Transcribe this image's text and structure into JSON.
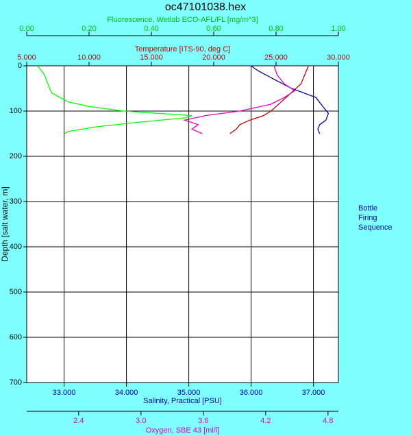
{
  "chart_data": {
    "type": "profile",
    "title": "oc47101038.hex",
    "y_label": "Depth [salt water, m]",
    "ylim": [
      0,
      700
    ],
    "yticks": [
      0,
      100,
      200,
      300,
      400,
      500,
      600,
      700
    ],
    "grid": true,
    "x_axes": [
      {
        "label": "Fluorescence, Wetlab ECO-AFL/FL [mg/m^3]",
        "color": "#00c000",
        "xlim": [
          0,
          1
        ],
        "xticks": [
          {
            "value": 0,
            "label": "0.00"
          },
          {
            "value": 0.2,
            "label": "0.20"
          },
          {
            "value": 0.4,
            "label": "0.40"
          },
          {
            "value": 0.6,
            "label": "0.60"
          },
          {
            "value": 0.8,
            "label": "0.80"
          },
          {
            "value": 1,
            "label": "1.00"
          }
        ]
      },
      {
        "label": "Temperature [ITS-90, deg C]",
        "color": "#c00000",
        "xlim": [
          5,
          30
        ],
        "xticks": [
          {
            "value": 5,
            "label": "5.000"
          },
          {
            "value": 10,
            "label": "10.000"
          },
          {
            "value": 15,
            "label": "15.000"
          },
          {
            "value": 20,
            "label": "20.000"
          },
          {
            "value": 25,
            "label": "25.000"
          },
          {
            "value": 30,
            "label": "30.000"
          }
        ]
      },
      {
        "label": "Salinity, Practical [PSU]",
        "color": "#0000a0",
        "xlim": [
          32.4,
          37.4
        ],
        "xticks": [
          {
            "value": 33,
            "label": "33.000"
          },
          {
            "value": 34,
            "label": "34.000"
          },
          {
            "value": 35,
            "label": "35.000"
          },
          {
            "value": 36,
            "label": "36.000"
          },
          {
            "value": 37,
            "label": "37.000"
          }
        ]
      },
      {
        "label": "Oxygen, SBE 43 [ml/l]",
        "color": "#e000c0",
        "xlim": [
          1.9,
          4.9
        ],
        "xticks": [
          2.4,
          {
            "value": 3,
            "label": "3.0"
          },
          3.6,
          4.2,
          4.8
        ]
      }
    ],
    "series": [
      {
        "axis": 0,
        "color": "#00ff00",
        "depth": [
          0,
          20,
          40,
          60,
          80,
          90,
          100,
          110,
          115,
          125,
          135,
          145,
          150
        ],
        "values": [
          0.035,
          0.057,
          0.068,
          0.08,
          0.134,
          0.2,
          0.31,
          0.53,
          0.51,
          0.354,
          0.222,
          0.134,
          0.12
        ]
      },
      {
        "axis": 1,
        "color": "#c00000",
        "depth": [
          0,
          40,
          60,
          80,
          100,
          110,
          120,
          130,
          140,
          150
        ],
        "values": [
          27.6,
          27.0,
          26.2,
          25.4,
          24.6,
          24.0,
          22.9,
          22.1,
          21.8,
          21.3
        ]
      },
      {
        "axis": 2,
        "color": "#0000a0",
        "depth": [
          0,
          10,
          30,
          50,
          70,
          90,
          105,
          120,
          130,
          140,
          150
        ],
        "values": [
          36.0,
          36.1,
          36.37,
          36.65,
          37.04,
          37.15,
          37.24,
          37.2,
          37.1,
          37.07,
          37.1
        ]
      },
      {
        "axis": 3,
        "color": "#e000c0",
        "depth": [
          0,
          20,
          40,
          55,
          70,
          85,
          100,
          110,
          120,
          130,
          140,
          150
        ],
        "values": [
          4.28,
          4.31,
          4.38,
          4.48,
          4.38,
          4.25,
          3.95,
          3.62,
          3.42,
          3.55,
          3.49,
          3.59
        ]
      }
    ],
    "side_label": [
      "Bottle",
      "Firing",
      "Sequence"
    ]
  }
}
